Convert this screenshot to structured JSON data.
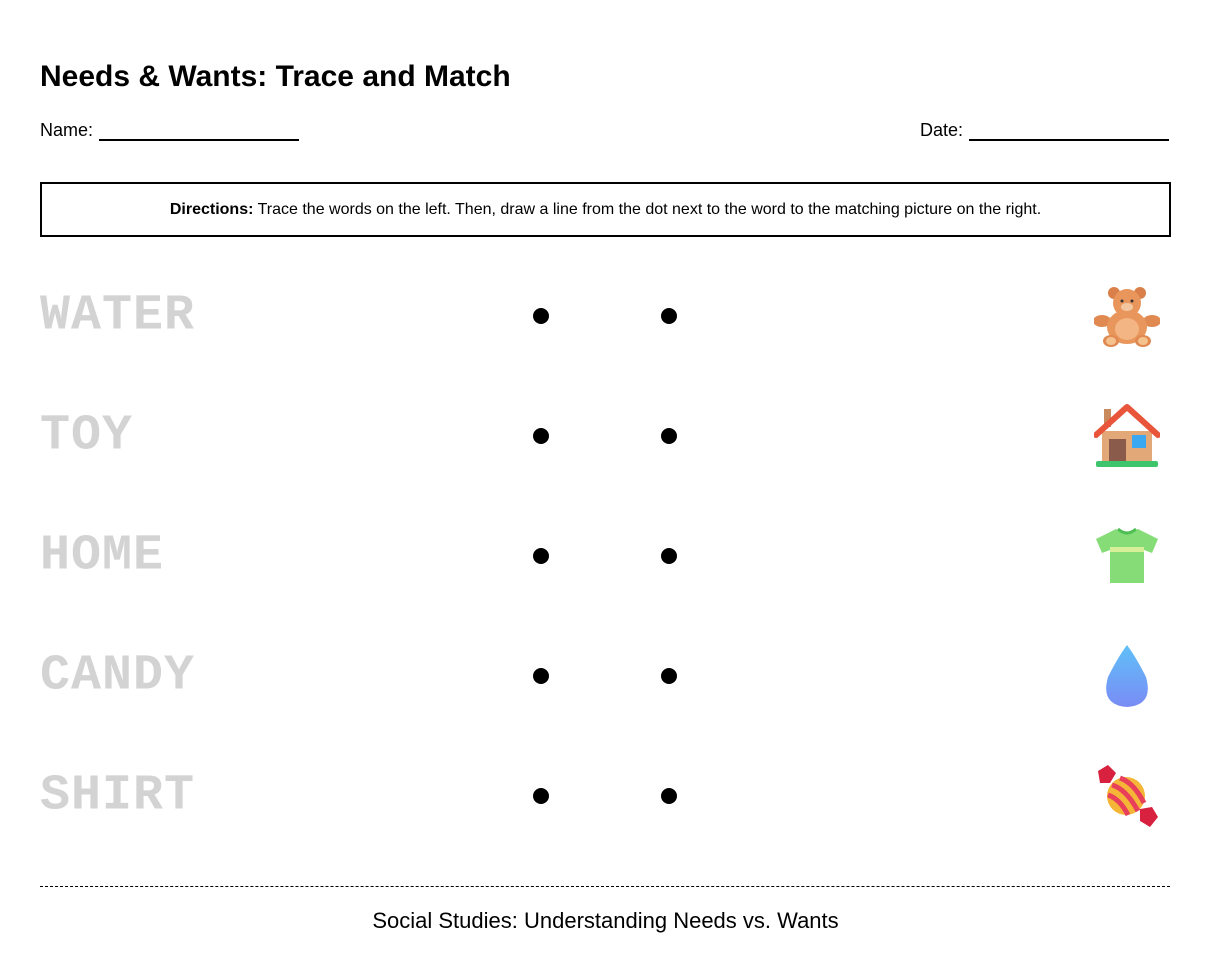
{
  "title": "Needs & Wants: Trace and Match",
  "name_label": "Name:",
  "date_label": "Date:",
  "directions": {
    "label": "Directions:",
    "text": " Trace the words on the left. Then, draw a line from the dot next to the word to the matching picture on the right."
  },
  "words": [
    "WATER",
    "TOY",
    "HOME",
    "CANDY",
    "SHIRT"
  ],
  "pictures": [
    "teddy-bear-icon",
    "house-icon",
    "t-shirt-icon",
    "water-drop-icon",
    "candy-icon"
  ],
  "colors": {
    "trace_text": "#d3d3d3"
  },
  "footer": "Social Studies: Understanding Needs vs. Wants"
}
